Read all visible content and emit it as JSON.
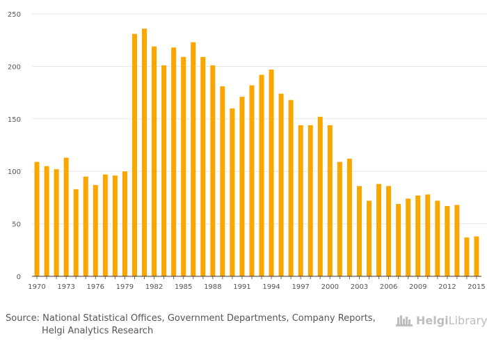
{
  "chart_data": {
    "type": "bar",
    "title": "",
    "xlabel": "",
    "ylabel": "",
    "ylim": [
      0,
      250
    ],
    "yticks": [
      0,
      50,
      100,
      150,
      200,
      250
    ],
    "x": [
      1970,
      1971,
      1972,
      1973,
      1974,
      1975,
      1976,
      1977,
      1978,
      1979,
      1980,
      1981,
      1982,
      1983,
      1984,
      1985,
      1986,
      1987,
      1988,
      1989,
      1990,
      1991,
      1992,
      1993,
      1994,
      1995,
      1996,
      1997,
      1998,
      1999,
      2000,
      2001,
      2002,
      2003,
      2004,
      2005,
      2006,
      2007,
      2008,
      2009,
      2010,
      2011,
      2012,
      2013,
      2014,
      2015
    ],
    "xtick_labels": [
      "1970",
      "1973",
      "1976",
      "1979",
      "1982",
      "1985",
      "1988",
      "1991",
      "1994",
      "1997",
      "2000",
      "2003",
      "2006",
      "2009",
      "2012",
      "2015"
    ],
    "values": [
      109,
      105,
      102,
      113,
      83,
      95,
      87,
      97,
      96,
      100,
      231,
      236,
      219,
      201,
      218,
      209,
      223,
      209,
      201,
      181,
      160,
      171,
      182,
      192,
      197,
      174,
      168,
      144,
      144,
      152,
      144,
      109,
      112,
      86,
      72,
      88,
      86,
      69,
      74,
      77,
      78,
      72,
      67,
      68,
      37,
      38
    ],
    "bar_color": "#f9a600",
    "grid": true
  },
  "footer": {
    "source_line1": "Source: National Statistical Offices, Government Departments, Company Reports,",
    "source_line2": "Helgi Analytics Research",
    "logo_part1": "Helgi",
    "logo_part2": "Library."
  }
}
